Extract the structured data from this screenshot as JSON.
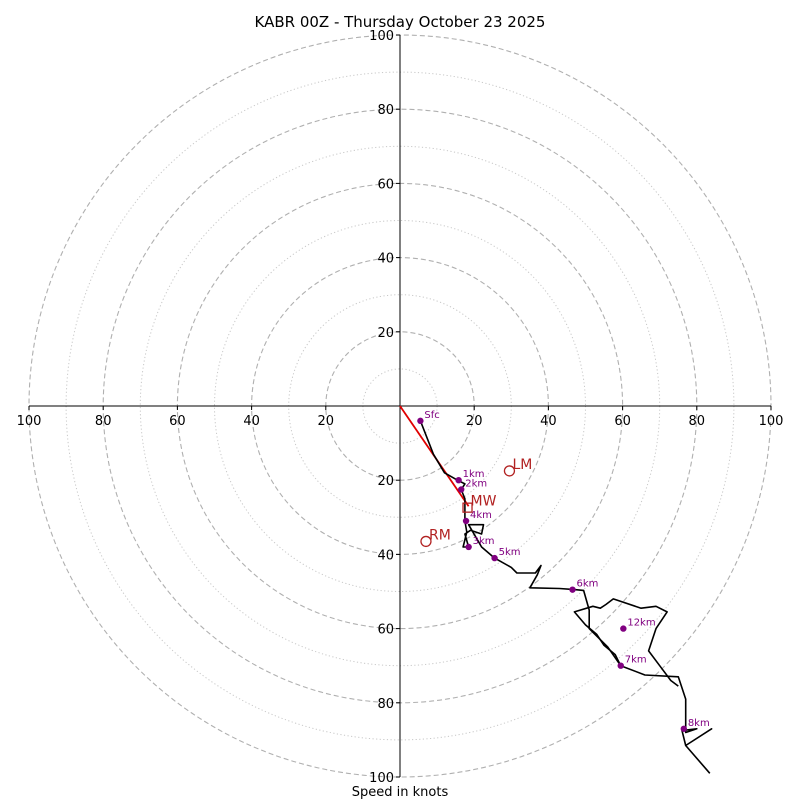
{
  "chart_data": {
    "type": "hodograph",
    "title": "KABR 00Z - Thursday October 23 2025",
    "xlabel": "Speed in knots",
    "xlim": [
      -100,
      100
    ],
    "ylim": [
      -100,
      100
    ],
    "major_rings": [
      20,
      40,
      60,
      80,
      100
    ],
    "minor_rings": [
      10,
      30,
      50,
      70,
      90
    ],
    "x_tick_labels": [
      "100",
      "80",
      "60",
      "40",
      "20",
      "20",
      "40",
      "60",
      "80",
      "100"
    ],
    "y_tick_labels": [
      "100",
      "80",
      "60",
      "40",
      "20",
      "20",
      "40",
      "60",
      "80",
      "100"
    ],
    "x_tick_values": [
      -100,
      -80,
      -60,
      -40,
      -20,
      20,
      40,
      60,
      80,
      100
    ],
    "y_tick_values": [
      100,
      80,
      60,
      40,
      20,
      -20,
      -40,
      -60,
      -80,
      -100
    ],
    "wind_trace": [
      [
        5.5,
        -4
      ],
      [
        9,
        -13
      ],
      [
        12,
        -18
      ],
      [
        15.5,
        -20
      ],
      [
        17.5,
        -21
      ],
      [
        16.5,
        -22.5
      ],
      [
        17.5,
        -25
      ],
      [
        17.5,
        -28
      ],
      [
        17.5,
        -31
      ],
      [
        18,
        -34
      ],
      [
        17,
        -38
      ],
      [
        18.5,
        -38
      ],
      [
        17.5,
        -34.5
      ],
      [
        19,
        -33.5
      ],
      [
        22,
        -34.5
      ],
      [
        22.5,
        -32
      ],
      [
        18.5,
        -32
      ],
      [
        22,
        -38
      ],
      [
        25.5,
        -41
      ],
      [
        30,
        -43.5
      ],
      [
        31.5,
        -45
      ],
      [
        36.5,
        -45
      ],
      [
        38,
        -43
      ],
      [
        37,
        -45.5
      ],
      [
        35,
        -49
      ],
      [
        43,
        -49.2
      ],
      [
        47,
        -49.5
      ],
      [
        49.5,
        -49.7
      ],
      [
        51,
        -55
      ],
      [
        51,
        -60
      ],
      [
        56,
        -65
      ],
      [
        59.5,
        -70
      ],
      [
        66,
        -72.5
      ],
      [
        75,
        -73
      ],
      [
        77,
        -79
      ],
      [
        77,
        -88
      ],
      [
        80,
        -87
      ],
      [
        76,
        -87.5
      ],
      [
        77,
        -91.5
      ],
      [
        84,
        -87
      ],
      [
        77,
        -91.5
      ],
      [
        83.5,
        -99
      ]
    ],
    "upper_trace": [
      [
        59.5,
        -70
      ],
      [
        58,
        -67
      ],
      [
        55,
        -64.5
      ],
      [
        53,
        -61.5
      ],
      [
        50,
        -59
      ],
      [
        47,
        -55.5
      ],
      [
        52,
        -54
      ],
      [
        54,
        -54.5
      ],
      [
        55.5,
        -53.5
      ],
      [
        57.5,
        -52
      ],
      [
        65,
        -54.5
      ],
      [
        69,
        -54
      ],
      [
        72,
        -55.5
      ],
      [
        69,
        -60
      ],
      [
        67,
        -66
      ],
      [
        70,
        -70
      ],
      [
        73,
        -74
      ],
      [
        75,
        -75.5
      ]
    ],
    "bunkers_line": [
      [
        0,
        0
      ],
      [
        18.5,
        -27
      ]
    ],
    "height_markers": [
      {
        "label": "Sfc",
        "u": 5.5,
        "v": -4
      },
      {
        "label": "1km",
        "u": 15.8,
        "v": -20
      },
      {
        "label": "2km",
        "u": 16.5,
        "v": -22.5
      },
      {
        "label": "4km",
        "u": 17.8,
        "v": -31
      },
      {
        "label": "3km",
        "u": 18.5,
        "v": -38
      },
      {
        "label": "5km",
        "u": 25.5,
        "v": -41
      },
      {
        "label": "6km",
        "u": 46.5,
        "v": -49.5
      },
      {
        "label": "12km",
        "u": 60.2,
        "v": -60
      },
      {
        "label": "7km",
        "u": 59.5,
        "v": -70
      },
      {
        "label": "8km",
        "u": 76.5,
        "v": -87
      }
    ],
    "motion_markers": [
      {
        "label": "LM",
        "u": 29.5,
        "v": -17.5,
        "shape": "circle"
      },
      {
        "label": "MW",
        "u": 18.2,
        "v": -27.4,
        "shape": "square"
      },
      {
        "label": "RM",
        "u": 7,
        "v": -36.5,
        "shape": "circle"
      }
    ],
    "colors": {
      "trace": "#000000",
      "marker": "#800080",
      "storm_motion": "#b22222",
      "bunkers_line": "#e00000",
      "ring": "#b0b0b0",
      "minor_ring": "#c8c8c8",
      "axis": "#000000"
    }
  }
}
